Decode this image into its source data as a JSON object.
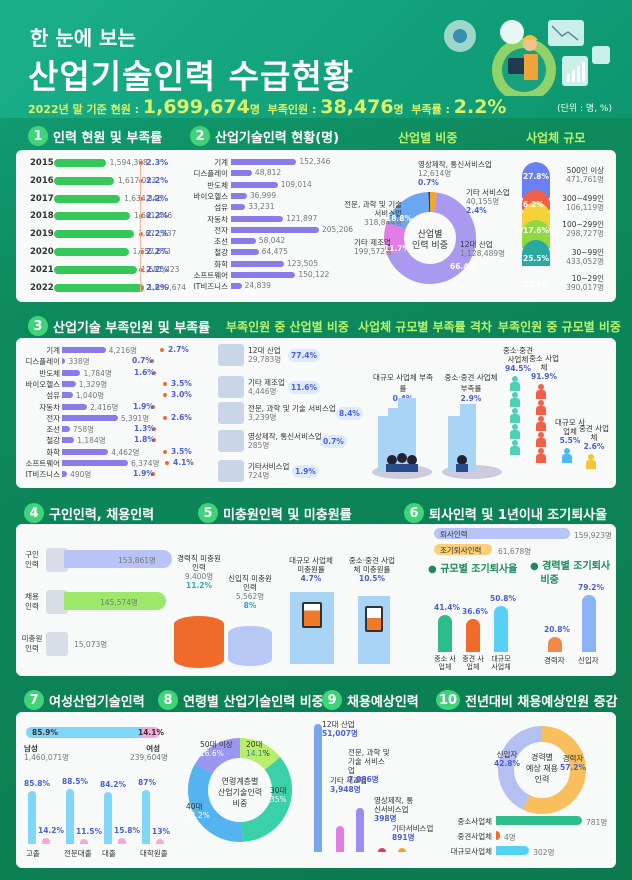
{
  "header": {
    "subtitle": "한 눈에 보는",
    "title": "산업기술인력 수급현황",
    "stats_prefix": "2022년 말 기준 현원 : ",
    "current_value": "1,699,674",
    "current_unit": "명",
    "shortage_label": "부족인원 : ",
    "shortage_value": "38,476",
    "shortage_unit": "명",
    "rate_label": "부족률 : ",
    "rate_value": "2.2%",
    "unit_note": "(단위 : 명, %)"
  },
  "sections": {
    "s1": {
      "num": "1",
      "title": "인력 현원 및 부족률"
    },
    "s2": {
      "num": "2",
      "title": "산업기술인력 현황(명)",
      "sub1": "산업별 비중",
      "sub2": "사업체 규모"
    },
    "s3": {
      "num": "3",
      "title": "산업기술 부족인원 및 부족률",
      "sub1": "부족인원 중 산업별 비중",
      "sub2": "사업체 규모별 부족률 격차",
      "sub3": "부족인원 중 규모별 비중"
    },
    "s4": {
      "num": "4",
      "title": "구인인력, 채용인력"
    },
    "s5": {
      "num": "5",
      "title": "미충원인력 및 미충원률"
    },
    "s6": {
      "num": "6",
      "title": "퇴사인력 및 1년이내 조기퇴사율"
    },
    "s7": {
      "num": "7",
      "title": "여성산업기술인력"
    },
    "s8": {
      "num": "8",
      "title": "연령별 산업기술인력 비중"
    },
    "s9": {
      "num": "9",
      "title": "채용예상인력"
    },
    "s10": {
      "num": "10",
      "title": "전년대비 채용예상인원 증감"
    }
  },
  "chart_data": [
    {
      "type": "bar",
      "title": "인력 현원 및 부족률",
      "categories": [
        "2015",
        "2016",
        "2017",
        "2018",
        "2019",
        "2020",
        "2021",
        "2022"
      ],
      "series": [
        {
          "name": "현원",
          "values": [
            1594398,
            1617053,
            1634346,
            1661446,
            1672937,
            1657673,
            1681423,
            1699674
          ],
          "labels": [
            "1,594,398",
            "1,617,053",
            "1,634,346",
            "1,661,446",
            "1,672,937",
            "1,657,673",
            "1,681,423",
            "1,699,674"
          ]
        },
        {
          "name": "부족률(%)",
          "values": [
            2.3,
            2.2,
            2.2,
            2.2,
            2.2,
            2.2,
            2.2,
            2.2
          ],
          "labels": [
            "2.3%",
            "2.2%",
            "2.2%",
            "2.2%",
            "2.2%",
            "2.2%",
            "2.2%",
            "2.2%"
          ]
        }
      ]
    },
    {
      "type": "bar",
      "title": "산업기술인력 현황(명)",
      "categories": [
        "기계",
        "디스플레이",
        "반도체",
        "바이오헬스",
        "섬유",
        "자동차",
        "전자",
        "조선",
        "철강",
        "화학",
        "소프트웨어",
        "IT비즈니스"
      ],
      "values": [
        152346,
        48812,
        109014,
        36999,
        33231,
        121897,
        205206,
        58042,
        64475,
        123505,
        150122,
        24839
      ],
      "labels": [
        "152,346",
        "48,812",
        "109,014",
        "36,999",
        "33,231",
        "121,897",
        "205,206",
        "58,042",
        "64,475",
        "123,505",
        "150,122",
        "24,839"
      ]
    },
    {
      "type": "pie",
      "title": "산업별 인력 비중",
      "categories": [
        "12대 산업",
        "기타 제조업",
        "전문, 과학 및 기술 서비스업",
        "영상제작, 통신서비스업",
        "기타 서비스업"
      ],
      "values": [
        66.4,
        11.7,
        18.8,
        0.7,
        2.4
      ],
      "counts": [
        "1,128,489명",
        "199,572명",
        "318,844명",
        "12,614명",
        "40,155명"
      ]
    },
    {
      "type": "bar",
      "title": "사업체 규모",
      "categories": [
        "500인 이상",
        "300~499인",
        "100~299인",
        "30~99인",
        "10~29인"
      ],
      "values": [
        27.8,
        6.2,
        17.6,
        25.5,
        22.9
      ],
      "counts": [
        "471,761명",
        "106,119명",
        "298,727명",
        "433,052명",
        "390,017명"
      ]
    },
    {
      "type": "bar",
      "title": "산업기술 부족인원 및 부족률",
      "categories": [
        "기계",
        "디스플레이",
        "반도체",
        "바이오헬스",
        "섬유",
        "자동차",
        "전자",
        "조선",
        "철강",
        "화학",
        "소프트웨어",
        "IT비즈니스"
      ],
      "series": [
        {
          "name": "부족인원",
          "values": [
            4216,
            338,
            1784,
            1329,
            1040,
            2416,
            5391,
            758,
            1184,
            4462,
            6374,
            490
          ],
          "labels": [
            "4,216명",
            "338명",
            "1,784명",
            "1,329명",
            "1,040명",
            "2,416명",
            "5,391명",
            "758명",
            "1,184명",
            "4,462명",
            "6,374명",
            "490명"
          ]
        },
        {
          "name": "부족률(%)",
          "values": [
            2.7,
            0.7,
            1.6,
            3.5,
            3.0,
            1.9,
            2.6,
            1.3,
            1.8,
            3.5,
            4.1,
            1.9
          ],
          "labels": [
            "2.7%",
            "0.7%",
            "1.6%",
            "3.5%",
            "3.0%",
            "1.9%",
            "2.6%",
            "1.3%",
            "1.8%",
            "3.5%",
            "4.1%",
            "1.9%"
          ]
        }
      ]
    },
    {
      "type": "table",
      "title": "부족인원 중 산업별 비중",
      "rows": [
        {
          "name": "12대 산업",
          "count": "29,783명",
          "pct": "77.4%"
        },
        {
          "name": "기타 제조업",
          "count": "4,446명",
          "pct": "11.6%"
        },
        {
          "name": "전문, 과학 및 기술 서비스업",
          "count": "3,239명",
          "pct": "8.4%"
        },
        {
          "name": "영상제작, 통신서비스업",
          "count": "285명",
          "pct": "0.7%"
        },
        {
          "name": "기타서비스업",
          "count": "724명",
          "pct": "1.9%"
        }
      ]
    },
    {
      "type": "bar",
      "title": "사업체 규모별 부족률 격차",
      "categories": [
        "대규모 사업체 부족률",
        "중소·중견 사업체 부족률"
      ],
      "values": [
        0.4,
        2.9
      ]
    },
    {
      "type": "bar",
      "title": "부족인원 중 규모별 비중",
      "categories": [
        "중소·중견 사업체",
        "중소 사업체",
        "대규모 사업체",
        "중견 사업체"
      ],
      "values": [
        94.5,
        91.9,
        5.5,
        2.6
      ]
    },
    {
      "type": "bar",
      "title": "구인인력, 채용인력",
      "categories": [
        "구인 인력",
        "채용 인력",
        "미충원 인력"
      ],
      "values": [
        153861,
        145574,
        15073
      ],
      "labels": [
        "153,861명",
        "145,574명",
        "15,073명"
      ]
    },
    {
      "type": "bar",
      "title": "미충원인력 및 미충원률",
      "categories": [
        "경력직 미충원인력",
        "신입직 미충원인력",
        "대규모 사업체 미충원률",
        "중소·중견 사업체 미충원률"
      ],
      "counts": [
        "9,400명",
        "5,562명",
        "",
        ""
      ],
      "values": [
        11.2,
        8.0,
        4.7,
        10.5
      ]
    },
    {
      "type": "bar",
      "title": "퇴사인력 및 1년이내 조기퇴사율",
      "categories": [
        "퇴사인력",
        "조기퇴사인력"
      ],
      "values": [
        159923,
        61678
      ],
      "labels": [
        "159,923명",
        "61,678명"
      ]
    },
    {
      "type": "bar",
      "title": "규모별 조기퇴사율",
      "categories": [
        "중소 사업체",
        "중견 사업체",
        "대규모 사업체"
      ],
      "values": [
        41.4,
        36.6,
        50.8
      ]
    },
    {
      "type": "bar",
      "title": "경력별 조기퇴사 비중",
      "categories": [
        "경력자",
        "신입자"
      ],
      "values": [
        20.8,
        79.2
      ]
    },
    {
      "type": "bar",
      "title": "여성산업기술인력",
      "overall": {
        "남성": {
          "pct": 85.9,
          "count": "1,460,071명"
        },
        "여성": {
          "pct": 14.1,
          "count": "239,604명"
        }
      },
      "categories": [
        "고졸",
        "전문대졸",
        "대졸",
        "대학원졸"
      ],
      "series": [
        {
          "name": "남성",
          "values": [
            85.8,
            88.5,
            84.2,
            87.0
          ]
        },
        {
          "name": "여성",
          "values": [
            14.2,
            11.5,
            15.8,
            13.0
          ]
        }
      ]
    },
    {
      "type": "pie",
      "title": "연령계층별 산업기술인력 비중",
      "categories": [
        "20대",
        "30대",
        "40대",
        "50대 이상"
      ],
      "values": [
        14.1,
        35.0,
        34.2,
        16.6
      ]
    },
    {
      "type": "bar",
      "title": "채용예상인력",
      "categories": [
        "12대 산업",
        "기타 제조업",
        "전문, 과학 및 기술 서비스업",
        "영상제작, 통신서비스업",
        "기타서비스업"
      ],
      "values": [
        51007,
        3948,
        7886,
        398,
        891
      ],
      "labels": [
        "51,007명",
        "3,948명",
        "7,886명",
        "398명",
        "891명"
      ]
    },
    {
      "type": "pie",
      "title": "경력별 예상 채용 인력",
      "categories": [
        "신입자",
        "경력자"
      ],
      "values": [
        42.8,
        57.2
      ]
    },
    {
      "type": "bar",
      "title": "전년대비 채용예상인원 증감",
      "categories": [
        "중소사업체",
        "중견사업체",
        "대규모사업체"
      ],
      "values": [
        781,
        4,
        302
      ],
      "labels": [
        "781명",
        "4명",
        "302명"
      ]
    }
  ],
  "labels": {
    "donut1_center": [
      "산업별",
      "인력 비중"
    ],
    "donut8_center": [
      "연령계층별",
      "산업기술인력",
      "비중"
    ],
    "donut10_center": [
      "경력별",
      "예상 채용",
      "인력"
    ],
    "s4_rows": [
      [
        "구인",
        "인력"
      ],
      [
        "채용",
        "인력"
      ],
      [
        "미충원",
        "인력"
      ]
    ],
    "s7_male": "남성",
    "s7_female": "여성",
    "s6_sub1": "규모별 조기퇴사율",
    "s6_sub2": "경력별 조기퇴사",
    "s6_sub2b": "비중"
  },
  "colors": {
    "green_bar": "#35c75a",
    "purple_bar": "#8a7ce8",
    "accent_blue": "#4b5fd0",
    "lime": "#d8f36a",
    "bg_green": "#0d8a5c"
  }
}
